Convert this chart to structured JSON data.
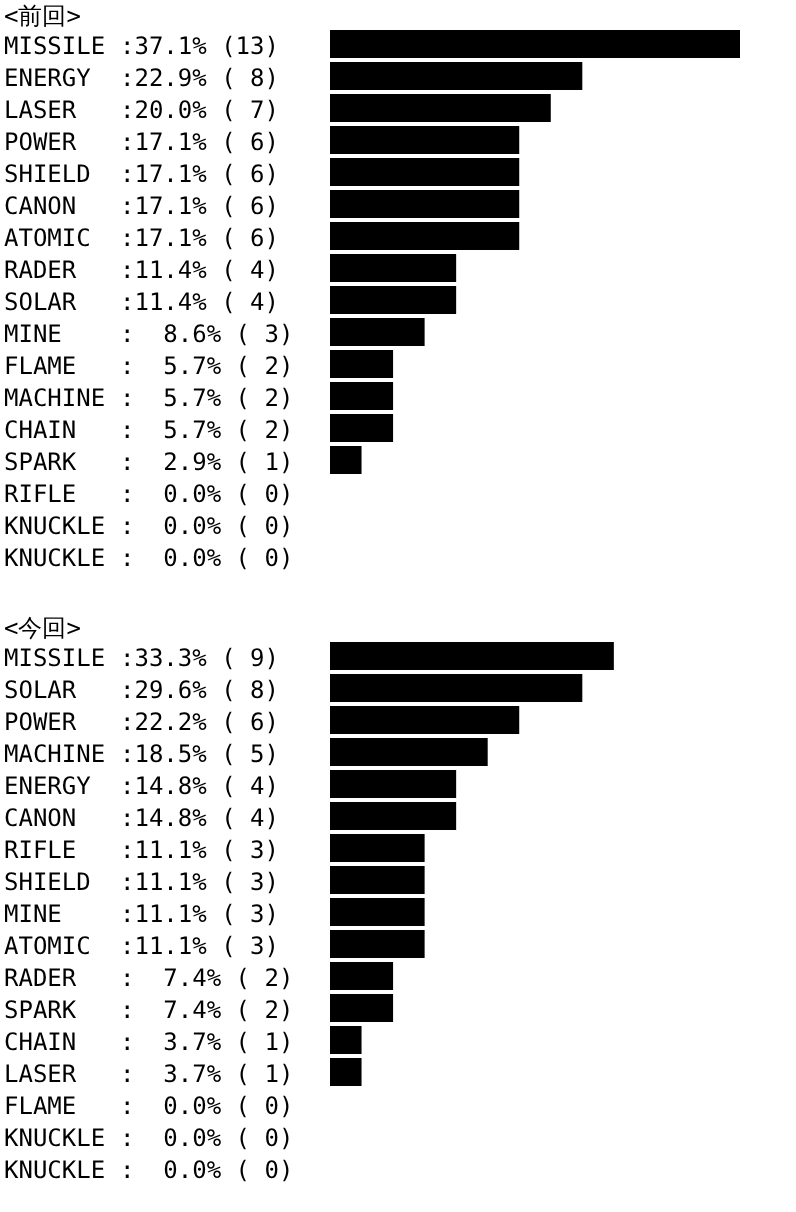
{
  "chart_data": [
    {
      "type": "bar",
      "orientation": "horizontal",
      "title": "<前回>",
      "color": "#000000",
      "categories": [
        "MISSILE",
        "ENERGY",
        "LASER",
        "POWER",
        "SHIELD",
        "CANON",
        "ATOMIC",
        "RADER",
        "SOLAR",
        "MINE",
        "FLAME",
        "MACHINE",
        "CHAIN",
        "SPARK",
        "RIFLE",
        "KNUCKLE",
        "KNUCKLE"
      ],
      "values": [
        13,
        8,
        7,
        6,
        6,
        6,
        6,
        4,
        4,
        3,
        2,
        2,
        2,
        1,
        0,
        0,
        0
      ],
      "value_labels": [
        ":37.1% (13)",
        ":22.9% ( 8)",
        ":20.0% ( 7)",
        ":17.1% ( 6)",
        ":17.1% ( 6)",
        ":17.1% ( 6)",
        ":17.1% ( 6)",
        ":11.4% ( 4)",
        ":11.4% ( 4)",
        ":  8.6% ( 3)",
        ":  5.7% ( 2)",
        ":  5.7% ( 2)",
        ":  5.7% ( 2)",
        ":  2.9% ( 1)",
        ":  0.0% ( 0)",
        ":  0.0% ( 0)",
        ":  0.0% ( 0)"
      ]
    },
    {
      "type": "bar",
      "orientation": "horizontal",
      "title": "<今回>",
      "color": "#000000",
      "categories": [
        "MISSILE",
        "SOLAR",
        "POWER",
        "MACHINE",
        "ENERGY",
        "CANON",
        "RIFLE",
        "SHIELD",
        "MINE",
        "ATOMIC",
        "RADER",
        "SPARK",
        "CHAIN",
        "LASER",
        "FLAME",
        "KNUCKLE",
        "KNUCKLE"
      ],
      "values": [
        9,
        8,
        6,
        5,
        4,
        4,
        3,
        3,
        3,
        3,
        2,
        2,
        1,
        1,
        0,
        0,
        0
      ],
      "value_labels": [
        ":33.3% ( 9)",
        ":29.6% ( 8)",
        ":22.2% ( 6)",
        ":18.5% ( 5)",
        ":14.8% ( 4)",
        ":14.8% ( 4)",
        ":11.1% ( 3)",
        ":11.1% ( 3)",
        ":11.1% ( 3)",
        ":11.1% ( 3)",
        ":  7.4% ( 2)",
        ":  7.4% ( 2)",
        ":  3.7% ( 1)",
        ":  3.7% ( 1)",
        ":  0.0% ( 0)",
        ":  0.0% ( 0)",
        ":  0.0% ( 0)"
      ]
    }
  ]
}
